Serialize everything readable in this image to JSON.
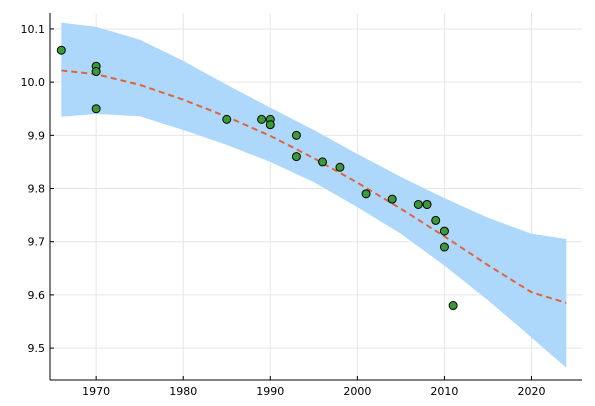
{
  "chart_data": {
    "type": "scatter",
    "title": "",
    "xlabel": "",
    "ylabel": "",
    "xlim": [
      1964.7,
      2025.8
    ],
    "ylim": [
      9.44,
      10.13
    ],
    "grid": true,
    "legend": "none",
    "x_ticks": [
      1970,
      1980,
      1990,
      2000,
      2010,
      2020
    ],
    "x_tick_labels": [
      "1970",
      "1980",
      "1990",
      "2000",
      "2010",
      "2020"
    ],
    "y_ticks": [
      9.5,
      9.6,
      9.7,
      9.8,
      9.9,
      10.0,
      10.1
    ],
    "y_tick_labels": [
      "9.5",
      "9.6",
      "9.7",
      "9.8",
      "9.9",
      "10.0",
      "10.1"
    ],
    "colors": {
      "points": "#3a9a3a",
      "point_edge": "#000000",
      "fit_line": "#e0633c",
      "band": "#aed8fb"
    },
    "observations": {
      "x": [
        1966,
        1970,
        1970,
        1970,
        1985,
        1989,
        1990,
        1990,
        1993,
        1993,
        1996,
        1998,
        2001,
        2004,
        2007,
        2008,
        2008,
        2009,
        2010,
        2010,
        2011
      ],
      "y": [
        10.06,
        10.03,
        10.02,
        9.95,
        9.93,
        9.93,
        9.93,
        9.92,
        9.9,
        9.86,
        9.85,
        9.84,
        9.79,
        9.78,
        9.77,
        9.77,
        9.77,
        9.74,
        9.72,
        9.69,
        9.58
      ]
    },
    "fit": {
      "x": [
        1966,
        1970,
        1975,
        1980,
        1985,
        1990,
        1995,
        2000,
        2005,
        2010,
        2015,
        2020,
        2024
      ],
      "y": [
        10.022,
        10.015,
        9.995,
        9.967,
        9.935,
        9.899,
        9.857,
        9.811,
        9.762,
        9.71,
        9.656,
        9.605,
        9.585
      ]
    },
    "band": {
      "x": [
        1966,
        1970,
        1975,
        1980,
        1985,
        1990,
        1995,
        2000,
        2005,
        2010,
        2015,
        2020,
        2024
      ],
      "upper": [
        10.112,
        10.104,
        10.08,
        10.04,
        9.995,
        9.952,
        9.91,
        9.865,
        9.822,
        9.782,
        9.745,
        9.715,
        9.705
      ],
      "lower": [
        9.935,
        9.94,
        9.936,
        9.91,
        9.882,
        9.85,
        9.812,
        9.765,
        9.715,
        9.655,
        9.59,
        9.52,
        9.463
      ]
    }
  }
}
